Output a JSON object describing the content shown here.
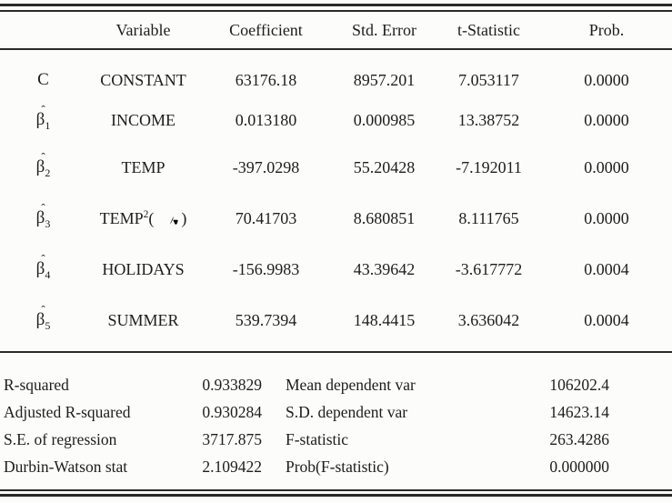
{
  "table": {
    "headers": [
      "Variable",
      "Coefficient",
      "Std. Error",
      "t-Statistic",
      "Prob."
    ],
    "rows": [
      {
        "symbol": {
          "base": "C",
          "hat": "",
          "sub": ""
        },
        "variable": {
          "base": "CONSTANT",
          "sup": "",
          "after": ""
        },
        "coefficient": "63176.18",
        "std_error": "8957.201",
        "t_statistic": "7.053117",
        "prob": "0.0000"
      },
      {
        "symbol": {
          "base": "β",
          "hat": "ˆ",
          "sub": "1"
        },
        "variable": {
          "base": "INCOME",
          "sup": "",
          "after": ""
        },
        "coefficient": "0.013180",
        "std_error": "0.000985",
        "t_statistic": "13.38752",
        "prob": "0.0000"
      },
      {
        "symbol": {
          "base": "β",
          "hat": "ˆ",
          "sub": "2"
        },
        "variable": {
          "base": "TEMP",
          "sup": "",
          "after": ""
        },
        "coefficient": "-397.0298",
        "std_error": "55.20428",
        "t_statistic": "-7.192011",
        "prob": "0.0000"
      },
      {
        "symbol": {
          "base": "β",
          "hat": "ˆ",
          "sub": "3"
        },
        "variable": {
          "base": "TEMP",
          "sup": "2",
          "after": "(平方)"
        },
        "coefficient": "70.41703",
        "std_error": "8.680851",
        "t_statistic": "8.111765",
        "prob": "0.0000"
      },
      {
        "symbol": {
          "base": "β",
          "hat": "ˆ",
          "sub": "4"
        },
        "variable": {
          "base": "HOLIDAYS",
          "sup": "",
          "after": ""
        },
        "coefficient": "-156.9983",
        "std_error": "43.39642",
        "t_statistic": "-3.617772",
        "prob": "0.0004"
      },
      {
        "symbol": {
          "base": "β",
          "hat": "ˆ",
          "sub": "5"
        },
        "variable": {
          "base": "SUMMER",
          "sup": "",
          "after": ""
        },
        "coefficient": "539.7394",
        "std_error": "148.4415",
        "t_statistic": "3.636042",
        "prob": "0.0004"
      }
    ]
  },
  "stats": {
    "rows": [
      {
        "label1": "R-squared",
        "value1": "0.933829",
        "label2": "Mean dependent var",
        "value2": "106202.4"
      },
      {
        "label1": "Adjusted R-squared",
        "value1": "0.930284",
        "label2": "S.D. dependent var",
        "value2": "14623.14"
      },
      {
        "label1": "S.E. of regression",
        "value1": "3717.875",
        "label2": "F-statistic",
        "value2": "263.4286"
      },
      {
        "label1": "Durbin-Watson stat",
        "value1": "2.109422",
        "label2": "Prob(F-statistic)",
        "value2": "0.000000"
      }
    ]
  }
}
